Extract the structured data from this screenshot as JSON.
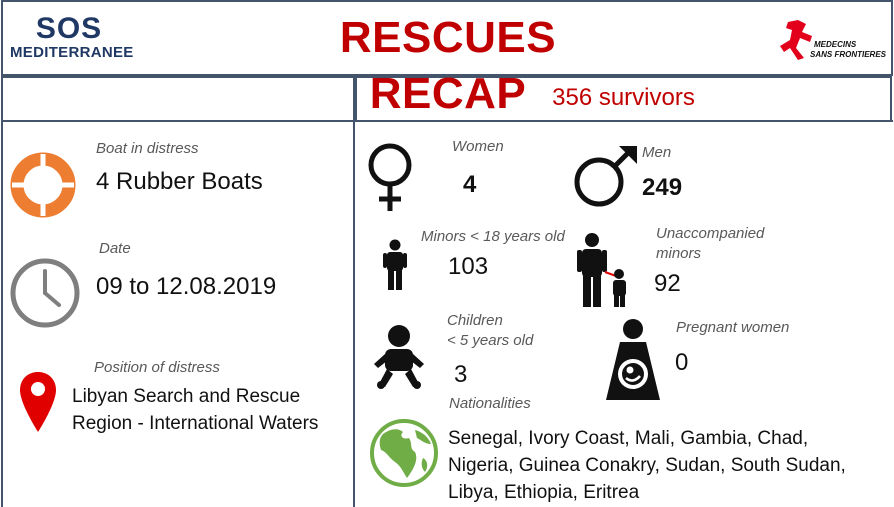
{
  "header": {
    "logo_left_line1": "SOS",
    "logo_left_line2": "MEDITERRANEE",
    "title": "RESCUES RECAP",
    "logo_right_line1": "MEDECINS",
    "logo_right_line2": "SANS FRONTIERES"
  },
  "summary": {
    "survivors": "356 survivors"
  },
  "left": {
    "boat": {
      "label": "Boat in distress",
      "value": "4 Rubber Boats",
      "icon": "lifebuoy-icon"
    },
    "date": {
      "label": "Date",
      "value": "09 to 12.08.2019",
      "icon": "clock-icon"
    },
    "position": {
      "label": "Position of distress",
      "line1": "Libyan Search and Rescue",
      "line2": "Region - International Waters",
      "icon": "map-pin-icon"
    }
  },
  "stats": {
    "women": {
      "label": "Women",
      "value": "4"
    },
    "men": {
      "label": "Men",
      "value": "249"
    },
    "minors": {
      "label": "Minors < 18 years old",
      "value": "103"
    },
    "unaccompanied": {
      "label_line1": "Unaccompanied",
      "label_line2": "minors",
      "value": "92"
    },
    "children": {
      "label_line1": "Children",
      "label_line2": "< 5 years old",
      "value": "3"
    },
    "pregnant": {
      "label": "Pregnant women",
      "value": "0"
    },
    "nationalities": {
      "label": "Nationalities",
      "line1": "Senegal, Ivory Coast, Mali, Gambia, Chad,",
      "line2": "Nigeria, Guinea Conakry, Sudan, South Sudan,",
      "line3": "Libya, Ethiopia, Eritrea"
    }
  },
  "colors": {
    "title_red": "#c00000",
    "border": "#44546a",
    "orange": "#ed7d31",
    "pin_red": "#e00000",
    "globe_green": "#70ad47"
  }
}
